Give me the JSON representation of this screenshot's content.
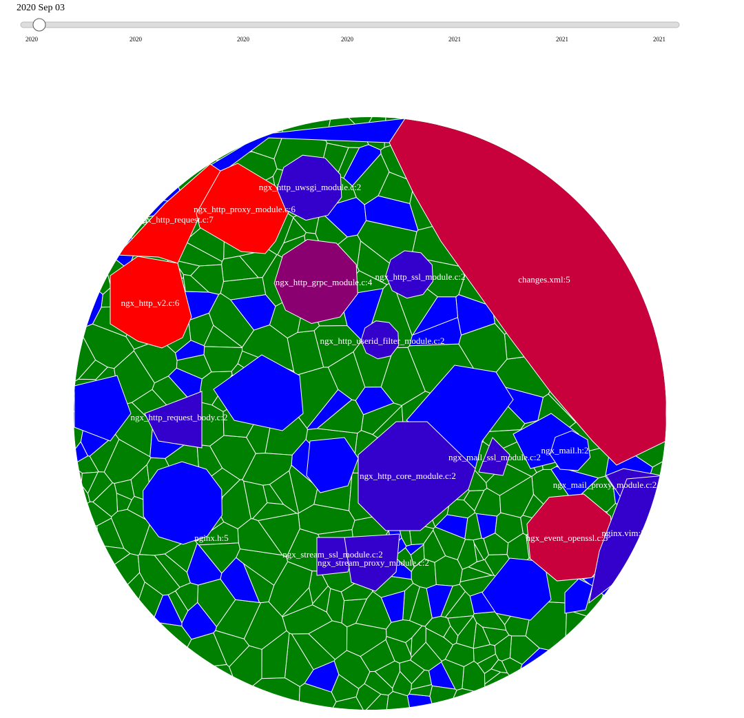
{
  "slider": {
    "label": "2020 Sep 03",
    "ticks": [
      "2020",
      "2020",
      "2020",
      "2020",
      "2021",
      "2021",
      "2021"
    ]
  },
  "cells": [
    {
      "label": "changes.xml:5"
    },
    {
      "label": "ngx_http_request.c:7"
    },
    {
      "label": "ngx_http_proxy_module.c:6"
    },
    {
      "label": "ngx_http_v2.c:6"
    },
    {
      "label": "ngx_http_uwsgi_module.c:2"
    },
    {
      "label": "ngx_http_grpc_module.c:4"
    },
    {
      "label": "ngx_http_ssl_module.c:2"
    },
    {
      "label": "ngx_http_userid_filter_module.c:2"
    },
    {
      "label": "ngx_http_request_body.c:2"
    },
    {
      "label": "ngx_http_core_module.c:2"
    },
    {
      "label": "ngx_mail_ssl_module.c:2"
    },
    {
      "label": "ngx_mail.h:2"
    },
    {
      "label": "ngx_mail_proxy_module.c:2"
    },
    {
      "label": "ngx_event_openssl.c:5"
    },
    {
      "label": "nginx.vim:2"
    },
    {
      "label": "nginx.h:5"
    },
    {
      "label": "ngx_stream_ssl_module.c:2"
    },
    {
      "label": "ngx_stream_proxy_module.c:2"
    }
  ]
}
